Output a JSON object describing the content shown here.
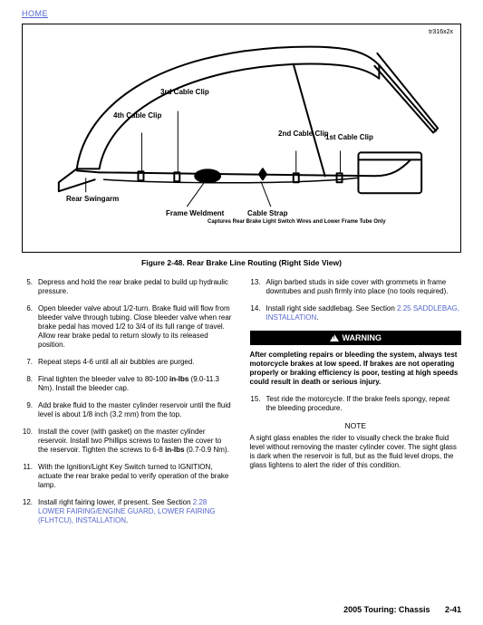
{
  "nav": {
    "home": "HOME"
  },
  "figure": {
    "ref": "tr316x2x",
    "caption": "Figure 2-48. Rear Brake Line Routing (Right Side View)",
    "callouts": {
      "clip3": "3rd\nCable Clip",
      "clip4": "4th\nCable Clip",
      "clip2": "2nd\nCable Clip",
      "clip1": "1st\nCable Clip",
      "swingarm": "Rear\nSwingarm",
      "weldment": "Frame\nWeldment",
      "strap": "Cable Strap",
      "strap_sub": "Captures Rear Brake Light Switch Wires\nand Lower Frame Tube Only"
    }
  },
  "left_steps": [
    {
      "n": "5.",
      "t": "Depress and hold the rear brake pedal to build up hydraulic pressure."
    },
    {
      "n": "6.",
      "t": "Open bleeder valve about 1/2-turn. Brake fluid will flow from bleeder valve through tubing. Close bleeder valve when rear brake pedal has moved 1/2 to 3/4 of its full range of travel. Allow rear brake pedal to return slowly to its released position."
    },
    {
      "n": "7.",
      "t": "Repeat steps 4-6 until all air bubbles are purged."
    },
    {
      "n": "8.",
      "t": "",
      "rich": [
        "Final tighten the bleeder valve to 80-100 ",
        {
          "b": "in-lbs"
        },
        " (9.0-11.3 Nm). Install the bleeder cap."
      ]
    },
    {
      "n": "9.",
      "t": "Add brake fluid to the master cylinder reservoir until the fluid level is about 1/8 inch (3.2 mm) from the top."
    },
    {
      "n": "10.",
      "t": "",
      "rich": [
        "Install the cover (with gasket) on the master cylinder reservoir. Install two Phillips screws to fasten the cover to the reservoir. Tighten the screws to 6-8 ",
        {
          "b": "in-lbs"
        },
        " (0.7-0.9 Nm)."
      ]
    },
    {
      "n": "11.",
      "t": "With the Ignition/Light Key Switch turned to IGNITION, actuate the rear brake pedal to verify operation of the brake lamp."
    },
    {
      "n": "12.",
      "t": "",
      "rich": [
        "Install right fairing lower, if present. See Section ",
        {
          "x": "2.28 LOWER FAIRING/ENGINE GUARD, LOWER FAIRING (FLHTCU), INSTALLATION"
        },
        "."
      ]
    }
  ],
  "right_steps_a": [
    {
      "n": "13.",
      "t": "Align barbed studs in side cover with grommets in frame downtubes and push firmly into place (no tools required)."
    },
    {
      "n": "14.",
      "t": "",
      "rich": [
        "Install right side saddlebag. See Section ",
        {
          "x": "2.25 SADDLEBAG, INSTALLATION"
        },
        "."
      ]
    }
  ],
  "warning": {
    "label": "WARNING",
    "text": "After completing repairs or bleeding the system, always test motorcycle brakes at low speed. If brakes are not operating properly or braking efficiency is poor, testing at high speeds could result in death or serious injury."
  },
  "right_steps_b": [
    {
      "n": "15.",
      "t": "Test ride the motorcycle. If the brake feels spongy, repeat the bleeding procedure."
    }
  ],
  "note": {
    "head": "NOTE",
    "body": "A sight glass enables the rider to visually check the brake fluid level without removing the master cylinder cover. The sight glass is dark when the reservoir is full, but as the fluid level drops, the glass lightens to alert the rider of this condition."
  },
  "footer": {
    "book": "2005 Touring: Chassis",
    "page": "2-41"
  }
}
